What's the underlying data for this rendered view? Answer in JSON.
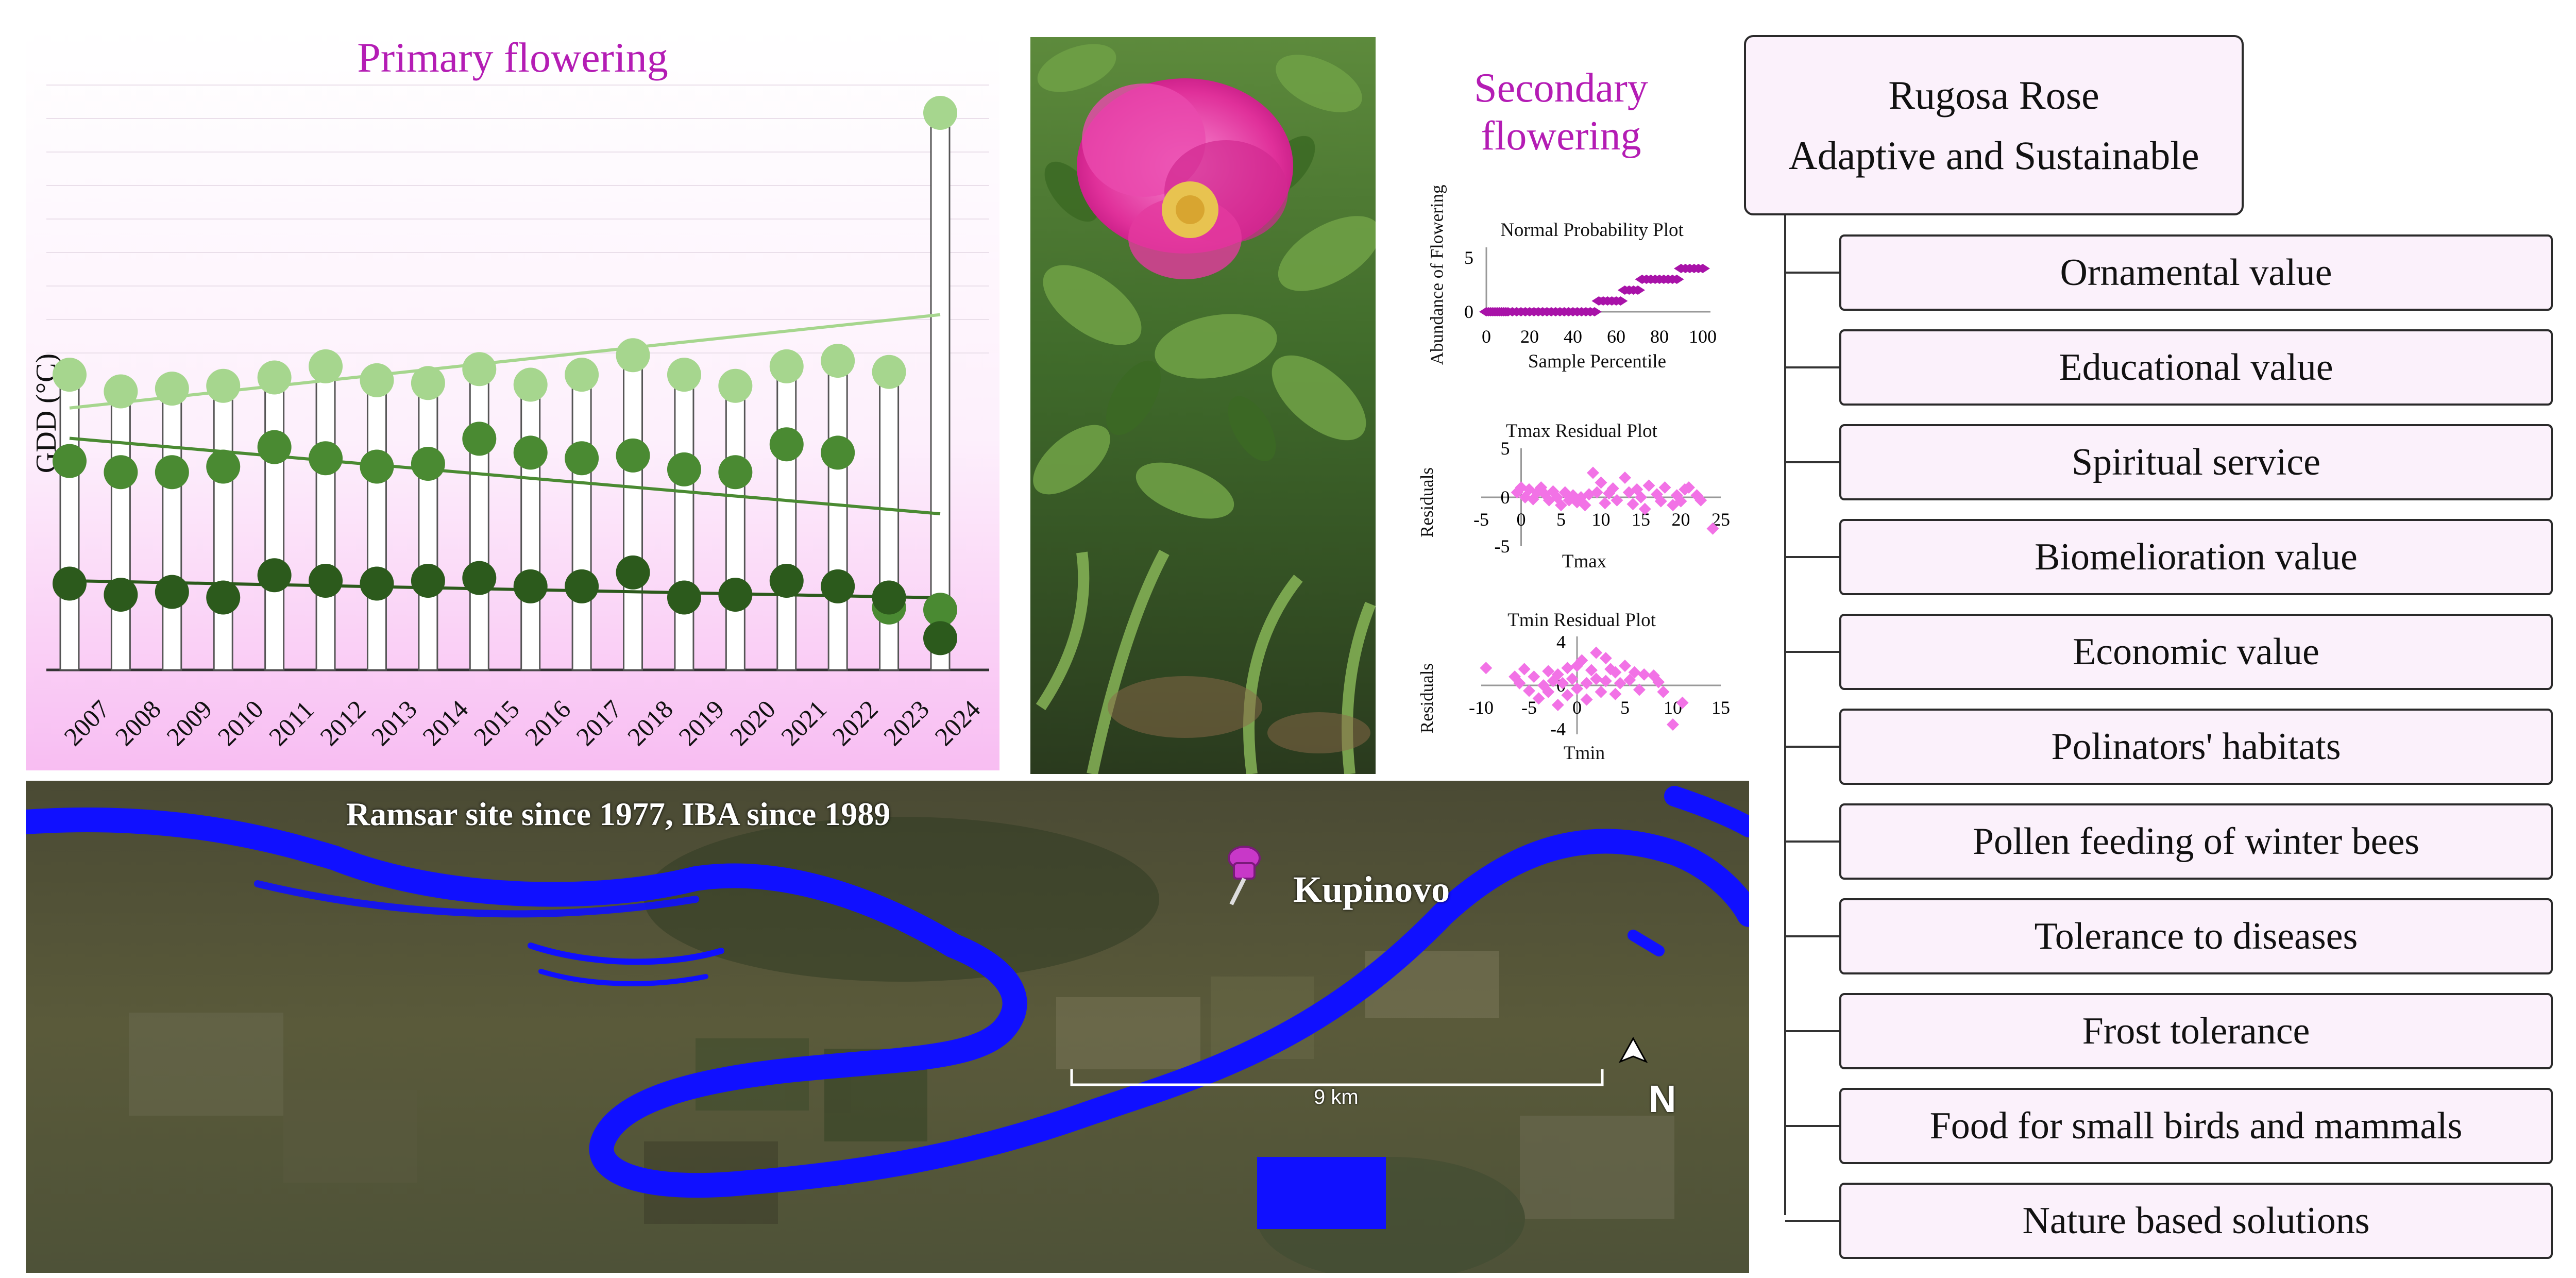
{
  "primary": {
    "title": "Primary flowering",
    "ylabel": "GDD (°C)",
    "years": [
      "2007",
      "2008",
      "2009",
      "2010",
      "2011",
      "2012",
      "2013",
      "2014",
      "2015",
      "2016",
      "2017",
      "2018",
      "2019",
      "2020",
      "2021",
      "2022",
      "2023",
      "2024"
    ],
    "colors": {
      "light": "#a6d68e",
      "mid": "#4a8a32",
      "dark": "#2c5a1c",
      "axis": "#333333"
    }
  },
  "secondary": {
    "title": "Secondary flowering",
    "npp": {
      "title": "Normal Probability Plot",
      "ylabel": "Abundance of Flowering",
      "xlabel": "Sample Percentile",
      "xticks": [
        "0",
        "20",
        "40",
        "60",
        "80",
        "100"
      ],
      "yticks": [
        "0",
        "5"
      ]
    },
    "tmax": {
      "title": "Tmax Residual Plot",
      "ylabel": "Residuals",
      "xlabel": "Tmax",
      "xticks": [
        "-5",
        "0",
        "5",
        "10",
        "15",
        "20",
        "25"
      ],
      "yticks": [
        "5",
        "0",
        "-5"
      ]
    },
    "tmin": {
      "title": "Tmin Residual Plot",
      "ylabel": "Residuals",
      "xlabel": "Tmin",
      "xticks": [
        "-10",
        "-5",
        "0",
        "5",
        "10",
        "15"
      ],
      "yticks": [
        "4",
        "0",
        "-4"
      ]
    }
  },
  "map": {
    "title": "Ramsar site since 1977, IBA since 1989",
    "place": "Kupinovo",
    "scale": "9 km",
    "north": "N"
  },
  "hierarchy": {
    "root_line1": "Rugosa Rose",
    "root_line2": "Adaptive and Sustainable",
    "items": [
      "Ornamental value",
      "Educational value",
      "Spiritual service",
      "Biomelioration value",
      "Economic value",
      "Polinators' habitats",
      "Pollen feeding of winter bees",
      "Tolerance to diseases",
      "Frost tolerance",
      "Food for small birds and mammals",
      "Nature based solutions"
    ]
  },
  "chart_data": [
    {
      "type": "scatter",
      "title": "Primary flowering",
      "ylabel": "GDD (°C)",
      "categories": [
        "2007",
        "2008",
        "2009",
        "2010",
        "2011",
        "2012",
        "2013",
        "2014",
        "2015",
        "2016",
        "2017",
        "2018",
        "2019",
        "2020",
        "2021",
        "2022",
        "2023",
        "2024"
      ],
      "series": [
        {
          "values": [
            530,
            500,
            505,
            510,
            525,
            545,
            520,
            515,
            540,
            512,
            530,
            565,
            530,
            510,
            545,
            555,
            535,
            1000
          ]
        },
        {
          "values": [
            375,
            355,
            355,
            365,
            400,
            380,
            365,
            370,
            415,
            390,
            380,
            385,
            360,
            355,
            405,
            390,
            112,
            108
          ]
        },
        {
          "values": [
            155,
            135,
            140,
            130,
            170,
            160,
            155,
            160,
            165,
            150,
            150,
            175,
            130,
            135,
            160,
            150,
            130,
            57
          ]
        }
      ],
      "ylim": [
        0,
        1050
      ]
    }
  ]
}
